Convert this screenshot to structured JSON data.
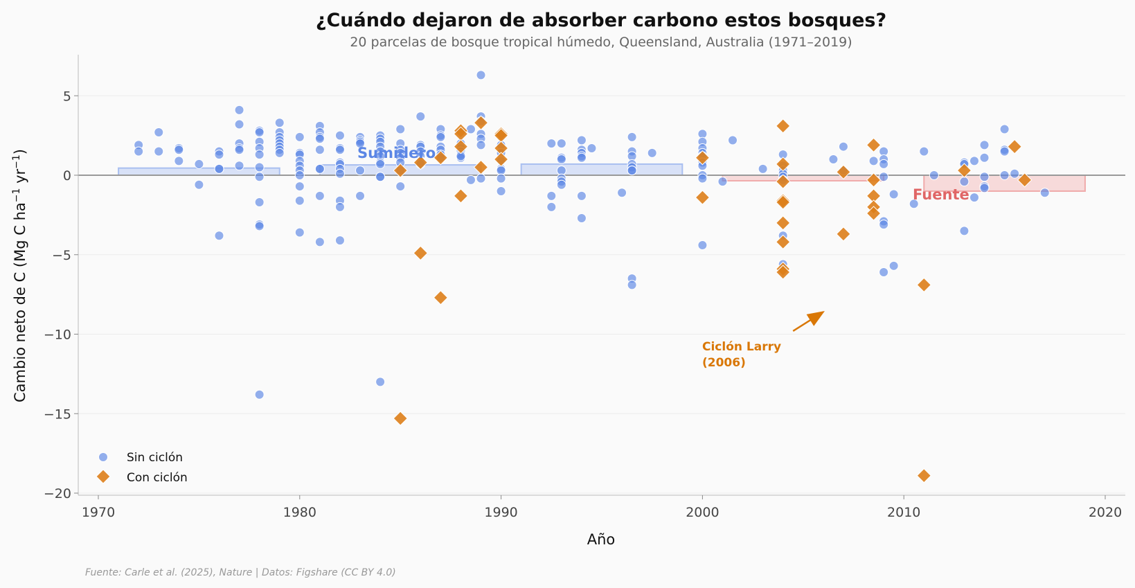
{
  "chart_data": {
    "type": "scatter",
    "title": "¿Cuándo dejaron de absorber carbono estos bosques?",
    "subtitle": "20 parcelas de bosque tropical húmedo, Queensland, Australia (1971–2019)",
    "xlabel": "Año",
    "ylabel": "Cambio neto de C (Mg C ha",
    "ylabel_sup1": "−1",
    "ylabel_mid": " yr",
    "ylabel_sup2": "−1",
    "ylabel_end": ")",
    "xlim": [
      1969,
      2021
    ],
    "ylim": [
      -20,
      7.6
    ],
    "xticks": [
      1970,
      1980,
      1990,
      2000,
      2010,
      2020
    ],
    "xtick_labels": [
      "1970",
      "1980",
      "1990",
      "2000",
      "2010",
      "2020"
    ],
    "yticks": [
      5,
      0,
      -5,
      -10,
      -15,
      -20
    ],
    "ytick_labels": [
      "5",
      "0",
      "−5",
      "−10",
      "−15",
      "−20"
    ],
    "grid": "horizontal",
    "legend_position": "bottom-left",
    "colors": {
      "no_cyclone": "#5b86e5",
      "cyclone": "#dd7e1a",
      "sink_band": "#c9d6f5",
      "source_band": "#f5cccc"
    },
    "series": [
      {
        "name": "Sin ciclón",
        "marker": "circle",
        "points": [
          [
            1972,
            1.9
          ],
          [
            1972,
            1.5
          ],
          [
            1973,
            2.7
          ],
          [
            1973,
            1.5
          ],
          [
            1974,
            1.7
          ],
          [
            1974,
            1.6
          ],
          [
            1974,
            0.9
          ],
          [
            1975,
            0.7
          ],
          [
            1975,
            -0.6
          ],
          [
            1976,
            1.5
          ],
          [
            1976,
            1.3
          ],
          [
            1976,
            0.4
          ],
          [
            1976,
            0.4
          ],
          [
            1976,
            -3.8
          ],
          [
            1977,
            4.1
          ],
          [
            1977,
            3.2
          ],
          [
            1977,
            2.0
          ],
          [
            1977,
            1.7
          ],
          [
            1977,
            1.6
          ],
          [
            1977,
            0.6
          ],
          [
            1978,
            2.8
          ],
          [
            1978,
            2.7
          ],
          [
            1978,
            2.1
          ],
          [
            1978,
            1.7
          ],
          [
            1978,
            1.3
          ],
          [
            1978,
            0.5
          ],
          [
            1978,
            -0.1
          ],
          [
            1978,
            -1.7
          ],
          [
            1978,
            -3.1
          ],
          [
            1978,
            -3.2
          ],
          [
            1978,
            -13.8
          ],
          [
            1979,
            3.3
          ],
          [
            1979,
            2.7
          ],
          [
            1979,
            2.4
          ],
          [
            1979,
            2.2
          ],
          [
            1979,
            2.0
          ],
          [
            1979,
            1.8
          ],
          [
            1979,
            1.6
          ],
          [
            1979,
            1.4
          ],
          [
            1980,
            2.4
          ],
          [
            1980,
            1.4
          ],
          [
            1980,
            1.3
          ],
          [
            1980,
            0.9
          ],
          [
            1980,
            0.6
          ],
          [
            1980,
            0.3
          ],
          [
            1980,
            0.0
          ],
          [
            1980,
            -0.7
          ],
          [
            1980,
            -1.6
          ],
          [
            1980,
            -3.6
          ],
          [
            1981,
            3.1
          ],
          [
            1981,
            2.7
          ],
          [
            1981,
            2.4
          ],
          [
            1981,
            2.3
          ],
          [
            1981,
            1.6
          ],
          [
            1981,
            0.4
          ],
          [
            1981,
            0.4
          ],
          [
            1981,
            -1.3
          ],
          [
            1981,
            -4.2
          ],
          [
            1982,
            2.5
          ],
          [
            1982,
            1.7
          ],
          [
            1982,
            1.6
          ],
          [
            1982,
            0.8
          ],
          [
            1982,
            0.7
          ],
          [
            1982,
            0.4
          ],
          [
            1982,
            0.1
          ],
          [
            1982,
            -1.6
          ],
          [
            1982,
            -2.0
          ],
          [
            1982,
            -4.1
          ],
          [
            1983,
            2.4
          ],
          [
            1983,
            2.2
          ],
          [
            1983,
            2.1
          ],
          [
            1983,
            2.0
          ],
          [
            1983,
            0.3
          ],
          [
            1983,
            -1.3
          ],
          [
            1984,
            2.5
          ],
          [
            1984,
            2.3
          ],
          [
            1984,
            2.1
          ],
          [
            1984,
            1.8
          ],
          [
            1984,
            1.5
          ],
          [
            1984,
            1.2
          ],
          [
            1984,
            0.8
          ],
          [
            1984,
            0.7
          ],
          [
            1984,
            -0.1
          ],
          [
            1984,
            -0.1
          ],
          [
            1984,
            -13.0
          ],
          [
            1985,
            2.9
          ],
          [
            1985,
            2.0
          ],
          [
            1985,
            1.6
          ],
          [
            1985,
            1.4
          ],
          [
            1985,
            1.1
          ],
          [
            1985,
            0.8
          ],
          [
            1985,
            0.3
          ],
          [
            1985,
            -0.7
          ],
          [
            1986,
            3.7
          ],
          [
            1986,
            1.9
          ],
          [
            1986,
            1.8
          ],
          [
            1986,
            1.5
          ],
          [
            1986,
            1.2
          ],
          [
            1986,
            0.9
          ],
          [
            1986,
            0.7
          ],
          [
            1987,
            2.9
          ],
          [
            1987,
            2.5
          ],
          [
            1987,
            2.4
          ],
          [
            1987,
            1.8
          ],
          [
            1987,
            1.6
          ],
          [
            1987,
            1.3
          ],
          [
            1987,
            1.1
          ],
          [
            1988,
            2.0
          ],
          [
            1988,
            1.7
          ],
          [
            1988,
            1.5
          ],
          [
            1988,
            1.3
          ],
          [
            1988,
            1.1
          ],
          [
            1988,
            1.2
          ],
          [
            1988.5,
            2.9
          ],
          [
            1988.5,
            -0.3
          ],
          [
            1989,
            6.3
          ],
          [
            1989,
            3.7
          ],
          [
            1989,
            3.4
          ],
          [
            1989,
            2.6
          ],
          [
            1989,
            2.3
          ],
          [
            1989,
            1.9
          ],
          [
            1989,
            -0.2
          ],
          [
            1990,
            2.4
          ],
          [
            1990,
            1.9
          ],
          [
            1990,
            1.4
          ],
          [
            1990,
            0.9
          ],
          [
            1990,
            0.4
          ],
          [
            1990,
            0.3
          ],
          [
            1990,
            -0.2
          ],
          [
            1990,
            -1.0
          ],
          [
            1992.5,
            2.0
          ],
          [
            1992.5,
            -1.3
          ],
          [
            1992.5,
            -2.0
          ],
          [
            1993,
            2.0
          ],
          [
            1993,
            1.1
          ],
          [
            1993,
            1.0
          ],
          [
            1993,
            0.3
          ],
          [
            1993,
            -0.2
          ],
          [
            1993,
            -0.4
          ],
          [
            1993,
            -0.6
          ],
          [
            1994,
            2.2
          ],
          [
            1994,
            1.6
          ],
          [
            1994,
            1.4
          ],
          [
            1994,
            1.2
          ],
          [
            1994,
            1.1
          ],
          [
            1994,
            -1.3
          ],
          [
            1994,
            -2.7
          ],
          [
            1994.5,
            1.7
          ],
          [
            1996,
            -1.1
          ],
          [
            1996.5,
            2.4
          ],
          [
            1996.5,
            1.5
          ],
          [
            1996.5,
            1.2
          ],
          [
            1996.5,
            0.7
          ],
          [
            1996.5,
            0.5
          ],
          [
            1996.5,
            0.3
          ],
          [
            1996.5,
            0.3
          ],
          [
            1996.5,
            -6.5
          ],
          [
            1996.5,
            -6.9
          ],
          [
            1997.5,
            1.4
          ],
          [
            2000,
            2.6
          ],
          [
            2000,
            2.1
          ],
          [
            2000,
            1.7
          ],
          [
            2000,
            1.4
          ],
          [
            2000,
            1.2
          ],
          [
            2000,
            0.8
          ],
          [
            2000,
            0.6
          ],
          [
            2000,
            0.0
          ],
          [
            2000,
            -0.2
          ],
          [
            2000,
            -4.4
          ],
          [
            2001,
            -0.4
          ],
          [
            2001.5,
            2.2
          ],
          [
            2003,
            0.4
          ],
          [
            2004,
            1.3
          ],
          [
            2004,
            0.6
          ],
          [
            2004,
            0.3
          ],
          [
            2004,
            0.1
          ],
          [
            2004,
            -0.1
          ],
          [
            2004,
            -0.3
          ],
          [
            2004,
            -3.8
          ],
          [
            2004,
            -5.6
          ],
          [
            2006.5,
            1.0
          ],
          [
            2007,
            1.8
          ],
          [
            2007,
            0.3
          ],
          [
            2008.5,
            0.9
          ],
          [
            2009,
            1.5
          ],
          [
            2009,
            1.0
          ],
          [
            2009,
            0.7
          ],
          [
            2009,
            -0.1
          ],
          [
            2009,
            -2.9
          ],
          [
            2009,
            -3.1
          ],
          [
            2009,
            -6.1
          ],
          [
            2009.5,
            -1.2
          ],
          [
            2009.5,
            -5.7
          ],
          [
            2010.5,
            -1.8
          ],
          [
            2011,
            1.5
          ],
          [
            2011.5,
            0.0
          ],
          [
            2013,
            0.8
          ],
          [
            2013,
            0.7
          ],
          [
            2013,
            -0.4
          ],
          [
            2013,
            -3.5
          ],
          [
            2013.5,
            0.9
          ],
          [
            2013.5,
            -1.4
          ],
          [
            2014,
            1.9
          ],
          [
            2014,
            1.1
          ],
          [
            2014,
            -0.1
          ],
          [
            2014,
            -0.7
          ],
          [
            2014,
            -0.8
          ],
          [
            2015,
            2.9
          ],
          [
            2015,
            1.6
          ],
          [
            2015,
            1.5
          ],
          [
            2015,
            0.0
          ],
          [
            2015.5,
            0.1
          ],
          [
            2017,
            -1.1
          ]
        ]
      },
      {
        "name": "Con ciclón",
        "marker": "diamond",
        "points": [
          [
            1985,
            0.3
          ],
          [
            1985,
            -15.3
          ],
          [
            1986,
            0.8
          ],
          [
            1986,
            -4.9
          ],
          [
            1987,
            1.1
          ],
          [
            1987,
            -7.7
          ],
          [
            1988,
            2.8
          ],
          [
            1988,
            2.6
          ],
          [
            1988,
            1.8
          ],
          [
            1988,
            -1.3
          ],
          [
            1989,
            3.3
          ],
          [
            1989,
            0.5
          ],
          [
            1990,
            2.6
          ],
          [
            1990,
            2.5
          ],
          [
            1990,
            1.7
          ],
          [
            1990,
            1.0
          ],
          [
            2000,
            1.1
          ],
          [
            2000,
            -1.4
          ],
          [
            2004,
            3.1
          ],
          [
            2004,
            0.7
          ],
          [
            2004,
            -0.4
          ],
          [
            2004,
            -1.6
          ],
          [
            2004,
            -1.7
          ],
          [
            2004,
            -3.0
          ],
          [
            2004,
            -4.2
          ],
          [
            2004,
            -5.9
          ],
          [
            2004,
            -6.1
          ],
          [
            2007,
            0.2
          ],
          [
            2007,
            -3.7
          ],
          [
            2008.5,
            1.9
          ],
          [
            2008.5,
            -0.3
          ],
          [
            2008.5,
            -1.3
          ],
          [
            2008.5,
            -2.0
          ],
          [
            2008.5,
            -2.4
          ],
          [
            2011,
            -6.9
          ],
          [
            2011,
            -18.9
          ],
          [
            2013,
            0.3
          ],
          [
            2015.5,
            1.8
          ],
          [
            2016,
            -0.3
          ]
        ]
      }
    ],
    "bands": [
      {
        "kind": "sink",
        "x0": 1971,
        "x1": 1979,
        "y0": 0,
        "y1": 0.45
      },
      {
        "kind": "sink",
        "x0": 1981,
        "x1": 1989,
        "y0": 0,
        "y1": 0.65
      },
      {
        "kind": "sink",
        "x0": 1991,
        "x1": 1999,
        "y0": 0,
        "y1": 0.7
      },
      {
        "kind": "source",
        "x0": 2001,
        "x1": 2009,
        "y0": 0,
        "y1": -0.35
      },
      {
        "kind": "source",
        "x0": 2011,
        "x1": 2019,
        "y0": 0,
        "y1": -1.0
      }
    ],
    "band_labels": {
      "sink": "Sumidero",
      "source": "Fuente"
    },
    "annotation": {
      "line1": "Ciclón Larry",
      "line2": "(2006)",
      "arrow_from": [
        2004.5,
        -9.8
      ],
      "arrow_to": [
        2006,
        -8.6
      ]
    }
  },
  "footer": {
    "source": "Fuente: Carle et al. (2025), Nature | Datos: Figshare (CC BY 4.0)"
  }
}
